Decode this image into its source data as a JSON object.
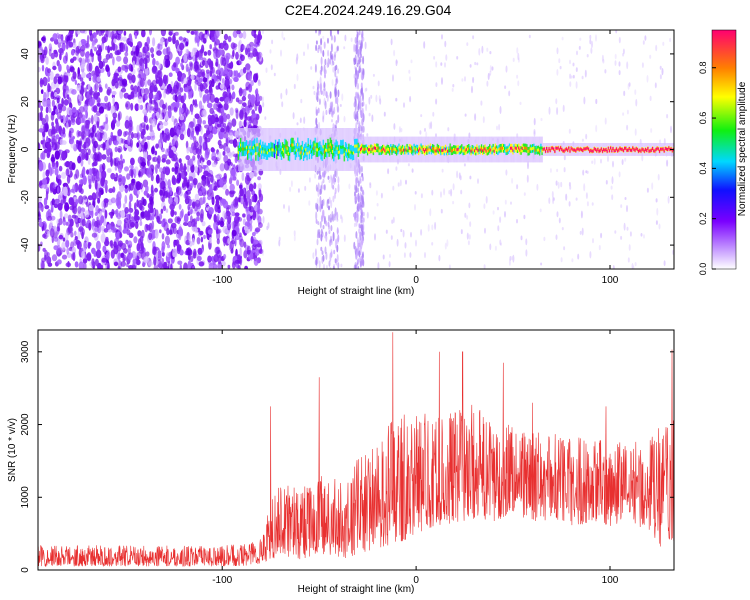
{
  "title": "C2E4.2024.249.16.29.G04",
  "colors": {
    "snr_line": "#e83030",
    "signal_core": "#e03a3a",
    "noise_purple": "#7f1fef"
  },
  "chart_data": [
    {
      "type": "heatmap",
      "xlabel": "Height of straight line (km)",
      "ylabel": "Frequency (Hz)",
      "xlim": [
        -195,
        133
      ],
      "ylim": [
        -50,
        50
      ],
      "x_ticks": [
        -100,
        0,
        100
      ],
      "y_ticks": [
        -40,
        -20,
        0,
        20,
        40
      ],
      "colorbar": {
        "label": "Normalized spectral amplitude",
        "range": [
          0,
          0.95
        ],
        "ticks": [
          0.0,
          0.2,
          0.4,
          0.6,
          0.8
        ],
        "colormap": "rainbow (white-purple-blue-cyan-green-yellow-red)"
      },
      "features": [
        {
          "name": "broadband noise",
          "x_range": [
            -195,
            -80
          ],
          "y_range": [
            -50,
            50
          ]
        },
        {
          "name": "noise stripe",
          "x_range": [
            -52,
            -40
          ],
          "y_range": [
            -50,
            50
          ]
        },
        {
          "name": "noise stripe",
          "x_range": [
            -32,
            -27
          ],
          "y_range": [
            -50,
            50
          ]
        },
        {
          "name": "signal trace",
          "x_range": [
            -92,
            133
          ],
          "y": 0
        }
      ]
    },
    {
      "type": "line",
      "xlabel": "Height of straight line (km)",
      "ylabel": "SNR (10 * v/v)",
      "xlim": [
        -195,
        133
      ],
      "ylim": [
        0,
        3300
      ],
      "x_ticks": [
        -100,
        0,
        100
      ],
      "y_ticks": [
        0,
        1000,
        2000,
        3000
      ],
      "envelope": {
        "x": [
          -195,
          -100,
          -85,
          -80,
          -70,
          -60,
          -50,
          -40,
          -35,
          -30,
          -20,
          -10,
          0,
          10,
          20,
          30,
          40,
          50,
          60,
          70,
          80,
          90,
          100,
          110,
          120,
          125,
          130,
          133
        ],
        "y_low": [
          50,
          50,
          60,
          80,
          200,
          150,
          200,
          180,
          150,
          200,
          300,
          350,
          500,
          600,
          650,
          700,
          650,
          800,
          650,
          700,
          600,
          650,
          600,
          700,
          500,
          300,
          300,
          300
        ],
        "y_high": [
          350,
          330,
          400,
          500,
          1300,
          1100,
          1300,
          1250,
          1200,
          1600,
          1700,
          2200,
          2200,
          2100,
          2200,
          2300,
          2000,
          2100,
          1900,
          1900,
          1900,
          1800,
          1800,
          1800,
          1800,
          2000,
          2000,
          2100
        ]
      },
      "peaks": [
        {
          "x": -75,
          "y": 2250
        },
        {
          "x": -50,
          "y": 2650
        },
        {
          "x": -12,
          "y": 3270
        },
        {
          "x": 12,
          "y": 3000
        },
        {
          "x": 24,
          "y": 3000
        },
        {
          "x": 45,
          "y": 2850
        },
        {
          "x": 60,
          "y": 2300
        },
        {
          "x": 98,
          "y": 2250
        },
        {
          "x": 132,
          "y": 3030
        }
      ]
    }
  ]
}
